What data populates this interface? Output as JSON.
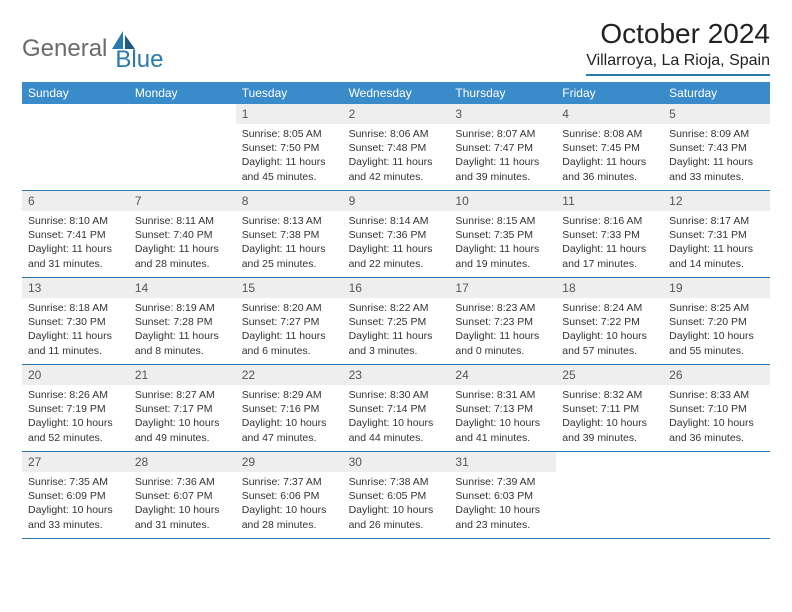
{
  "logo": {
    "text1": "General",
    "text2": "Blue"
  },
  "title": "October 2024",
  "location": "Villarroya, La Rioja, Spain",
  "colors": {
    "header_bg": "#3a8bc9",
    "rule": "#2a7ab0",
    "daynum_bg": "#eeeeee",
    "text": "#333333"
  },
  "weekdays": [
    "Sunday",
    "Monday",
    "Tuesday",
    "Wednesday",
    "Thursday",
    "Friday",
    "Saturday"
  ],
  "weeks": [
    [
      {
        "empty": true
      },
      {
        "empty": true
      },
      {
        "n": "1",
        "sunrise": "8:05 AM",
        "sunset": "7:50 PM",
        "daylight": "11 hours and 45 minutes."
      },
      {
        "n": "2",
        "sunrise": "8:06 AM",
        "sunset": "7:48 PM",
        "daylight": "11 hours and 42 minutes."
      },
      {
        "n": "3",
        "sunrise": "8:07 AM",
        "sunset": "7:47 PM",
        "daylight": "11 hours and 39 minutes."
      },
      {
        "n": "4",
        "sunrise": "8:08 AM",
        "sunset": "7:45 PM",
        "daylight": "11 hours and 36 minutes."
      },
      {
        "n": "5",
        "sunrise": "8:09 AM",
        "sunset": "7:43 PM",
        "daylight": "11 hours and 33 minutes."
      }
    ],
    [
      {
        "n": "6",
        "sunrise": "8:10 AM",
        "sunset": "7:41 PM",
        "daylight": "11 hours and 31 minutes."
      },
      {
        "n": "7",
        "sunrise": "8:11 AM",
        "sunset": "7:40 PM",
        "daylight": "11 hours and 28 minutes."
      },
      {
        "n": "8",
        "sunrise": "8:13 AM",
        "sunset": "7:38 PM",
        "daylight": "11 hours and 25 minutes."
      },
      {
        "n": "9",
        "sunrise": "8:14 AM",
        "sunset": "7:36 PM",
        "daylight": "11 hours and 22 minutes."
      },
      {
        "n": "10",
        "sunrise": "8:15 AM",
        "sunset": "7:35 PM",
        "daylight": "11 hours and 19 minutes."
      },
      {
        "n": "11",
        "sunrise": "8:16 AM",
        "sunset": "7:33 PM",
        "daylight": "11 hours and 17 minutes."
      },
      {
        "n": "12",
        "sunrise": "8:17 AM",
        "sunset": "7:31 PM",
        "daylight": "11 hours and 14 minutes."
      }
    ],
    [
      {
        "n": "13",
        "sunrise": "8:18 AM",
        "sunset": "7:30 PM",
        "daylight": "11 hours and 11 minutes."
      },
      {
        "n": "14",
        "sunrise": "8:19 AM",
        "sunset": "7:28 PM",
        "daylight": "11 hours and 8 minutes."
      },
      {
        "n": "15",
        "sunrise": "8:20 AM",
        "sunset": "7:27 PM",
        "daylight": "11 hours and 6 minutes."
      },
      {
        "n": "16",
        "sunrise": "8:22 AM",
        "sunset": "7:25 PM",
        "daylight": "11 hours and 3 minutes."
      },
      {
        "n": "17",
        "sunrise": "8:23 AM",
        "sunset": "7:23 PM",
        "daylight": "11 hours and 0 minutes."
      },
      {
        "n": "18",
        "sunrise": "8:24 AM",
        "sunset": "7:22 PM",
        "daylight": "10 hours and 57 minutes."
      },
      {
        "n": "19",
        "sunrise": "8:25 AM",
        "sunset": "7:20 PM",
        "daylight": "10 hours and 55 minutes."
      }
    ],
    [
      {
        "n": "20",
        "sunrise": "8:26 AM",
        "sunset": "7:19 PM",
        "daylight": "10 hours and 52 minutes."
      },
      {
        "n": "21",
        "sunrise": "8:27 AM",
        "sunset": "7:17 PM",
        "daylight": "10 hours and 49 minutes."
      },
      {
        "n": "22",
        "sunrise": "8:29 AM",
        "sunset": "7:16 PM",
        "daylight": "10 hours and 47 minutes."
      },
      {
        "n": "23",
        "sunrise": "8:30 AM",
        "sunset": "7:14 PM",
        "daylight": "10 hours and 44 minutes."
      },
      {
        "n": "24",
        "sunrise": "8:31 AM",
        "sunset": "7:13 PM",
        "daylight": "10 hours and 41 minutes."
      },
      {
        "n": "25",
        "sunrise": "8:32 AM",
        "sunset": "7:11 PM",
        "daylight": "10 hours and 39 minutes."
      },
      {
        "n": "26",
        "sunrise": "8:33 AM",
        "sunset": "7:10 PM",
        "daylight": "10 hours and 36 minutes."
      }
    ],
    [
      {
        "n": "27",
        "sunrise": "7:35 AM",
        "sunset": "6:09 PM",
        "daylight": "10 hours and 33 minutes."
      },
      {
        "n": "28",
        "sunrise": "7:36 AM",
        "sunset": "6:07 PM",
        "daylight": "10 hours and 31 minutes."
      },
      {
        "n": "29",
        "sunrise": "7:37 AM",
        "sunset": "6:06 PM",
        "daylight": "10 hours and 28 minutes."
      },
      {
        "n": "30",
        "sunrise": "7:38 AM",
        "sunset": "6:05 PM",
        "daylight": "10 hours and 26 minutes."
      },
      {
        "n": "31",
        "sunrise": "7:39 AM",
        "sunset": "6:03 PM",
        "daylight": "10 hours and 23 minutes."
      },
      {
        "empty": true
      },
      {
        "empty": true
      }
    ]
  ],
  "labels": {
    "sunrise": "Sunrise:",
    "sunset": "Sunset:",
    "daylight": "Daylight:"
  }
}
